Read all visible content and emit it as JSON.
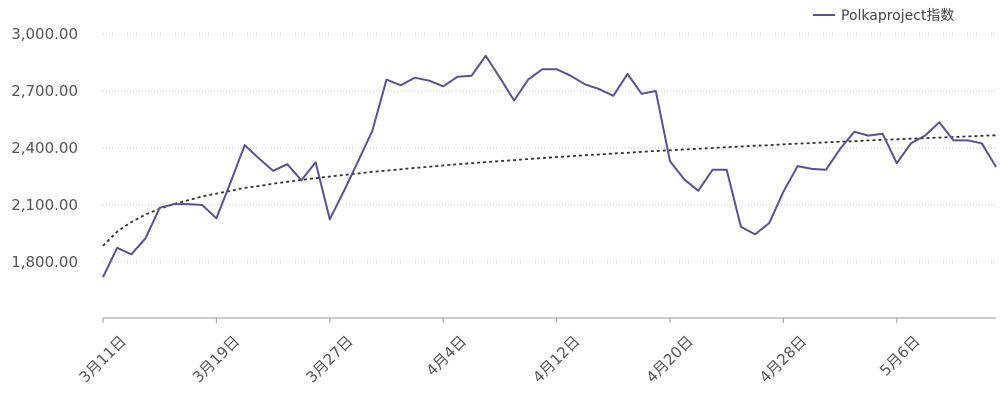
{
  "chart_data": {
    "type": "line",
    "legend": {
      "position": "top-right",
      "label": "Polkaproject指数"
    },
    "y_ticks": [
      "1,800.00",
      "2,100.00",
      "2,400.00",
      "2,700.00",
      "3,000.00"
    ],
    "y_tick_values": [
      1800,
      2100,
      2400,
      2700,
      3000
    ],
    "ylim": [
      1500,
      3000
    ],
    "x_ticks": [
      "3月11日",
      "3月19日",
      "3月27日",
      "4月4日",
      "4月12日",
      "4月20日",
      "4月28日",
      "5月6日"
    ],
    "x_tick_index": [
      0,
      8,
      16,
      24,
      32,
      40,
      48,
      56
    ],
    "grid": true,
    "colors": {
      "series": "#58519a",
      "trend": "#333333",
      "grid": "#c8c8c8",
      "axis": "#999999"
    },
    "series": [
      {
        "name": "Polkaproject指数",
        "style": "solid",
        "values": [
          1720,
          1875,
          1840,
          1925,
          2085,
          2105,
          2105,
          2100,
          2030,
          2220,
          2415,
          2345,
          2280,
          2315,
          2230,
          2325,
          2025,
          2175,
          2330,
          2490,
          2760,
          2730,
          2770,
          2755,
          2725,
          2775,
          2780,
          2885,
          2770,
          2650,
          2760,
          2815,
          2815,
          2780,
          2735,
          2710,
          2675,
          2790,
          2685,
          2700,
          2330,
          2235,
          2175,
          2285,
          2285,
          1985,
          1945,
          2005,
          2170,
          2305,
          2290,
          2285,
          2395,
          2485,
          2465,
          2475,
          2320,
          2425,
          2465,
          2535,
          2440,
          2440,
          2425,
          2300
        ]
      },
      {
        "name": "trend",
        "style": "dotted",
        "values": [
          1885,
          1960,
          2010,
          2050,
          2080,
          2105,
          2125,
          2145,
          2160,
          2175,
          2190,
          2200,
          2212,
          2222,
          2232,
          2241,
          2250,
          2258,
          2266,
          2274,
          2281,
          2288,
          2295,
          2301,
          2308,
          2314,
          2320,
          2326,
          2331,
          2336,
          2342,
          2347,
          2352,
          2357,
          2362,
          2366,
          2371,
          2375,
          2380,
          2384,
          2388,
          2392,
          2396,
          2400,
          2404,
          2408,
          2412,
          2415,
          2419,
          2423,
          2426,
          2430,
          2433,
          2436,
          2440,
          2443,
          2446,
          2449,
          2452,
          2455,
          2458,
          2461,
          2464,
          2467
        ]
      }
    ]
  }
}
